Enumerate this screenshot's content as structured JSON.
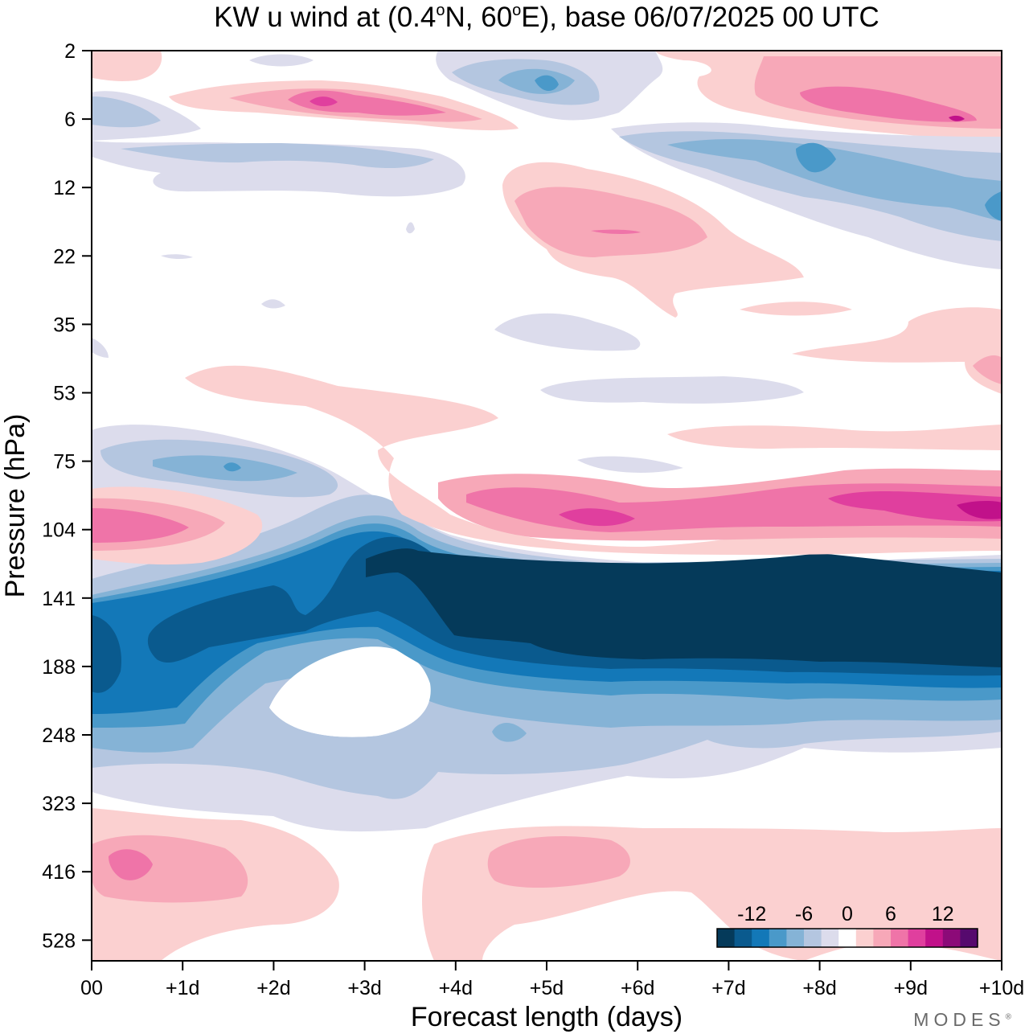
{
  "chart_data": {
    "type": "heatmap",
    "title_parts": [
      "KW u wind at (0.4",
      "o",
      "N, 60",
      "o",
      "E),  base 06/07/2025  00 UTC"
    ],
    "xlabel": "Forecast length (days)",
    "ylabel": "Pressure (hPa)",
    "x_ticks": [
      "00",
      "+1d",
      "+2d",
      "+3d",
      "+4d",
      "+5d",
      "+6d",
      "+7d",
      "+8d",
      "+9d",
      "+10d"
    ],
    "x_range_days": [
      0,
      10
    ],
    "y_ticks": [
      2,
      6,
      12,
      22,
      35,
      53,
      75,
      104,
      141,
      188,
      248,
      323,
      416,
      528
    ],
    "y_scale": "log-pressure, surface at bottom",
    "colorbar": {
      "tick_labels": [
        "-12",
        "-6",
        "0",
        "6",
        "12"
      ],
      "tick_values": [
        -12,
        -6,
        0,
        6,
        12
      ],
      "levels": [
        -16,
        -14,
        -12,
        -10,
        -8,
        -6,
        -4,
        -2,
        2,
        4,
        6,
        8,
        10,
        12,
        14,
        16
      ],
      "colors": [
        "#053a5a",
        "#0a5a8e",
        "#1378b8",
        "#4a99c9",
        "#85b3d6",
        "#b4c6e0",
        "#dcdcec",
        "#ffffff",
        "#fbd0d0",
        "#f7a8b8",
        "#ef74a8",
        "#e03f9e",
        "#c1118a",
        "#8c0a78",
        "#560a6e"
      ]
    },
    "features": [
      {
        "name": "easterly jet core",
        "u_min": -16,
        "days": [
          3,
          10
        ],
        "pressure_hPa": [
          120,
          180
        ]
      },
      {
        "name": "westerly band above jet",
        "u_max": 12,
        "days": [
          3.5,
          10
        ],
        "pressure_hPa": [
          85,
          110
        ]
      },
      {
        "name": "westerly low level maximum",
        "u_max": 8,
        "days": [
          0,
          2
        ],
        "pressure_hPa": [
          380,
          460
        ]
      },
      {
        "name": "stratospheric westerlies",
        "u_max": 12,
        "days": [
          2,
          3.5
        ],
        "pressure_hPa": [
          4,
          6
        ]
      },
      {
        "name": "stratospheric easterlies",
        "u_min": -10,
        "days": [
          6,
          10
        ],
        "pressure_hPa": [
          7,
          14
        ]
      }
    ]
  },
  "branding": "MODES",
  "branding_mark": "®"
}
